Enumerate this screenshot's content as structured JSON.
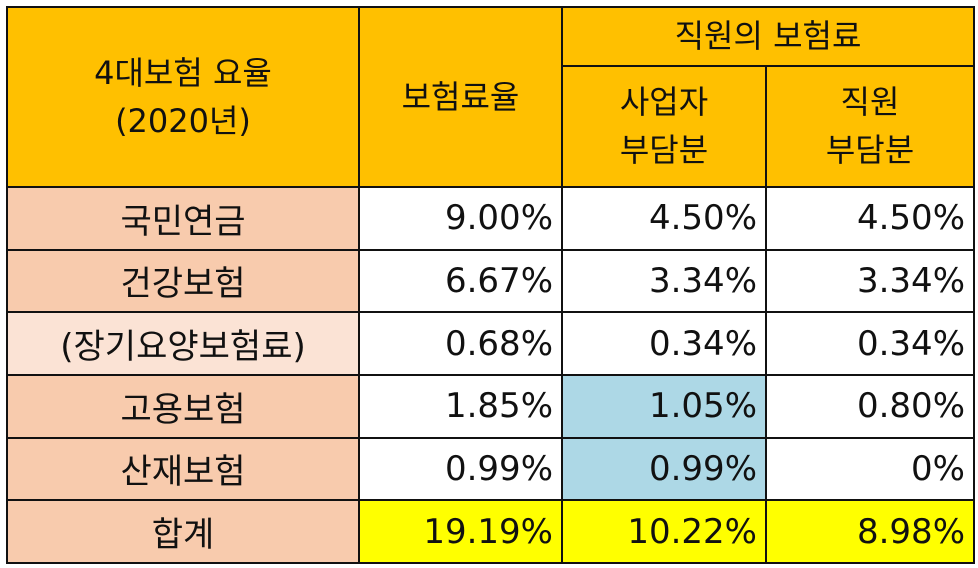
{
  "header": {
    "title_line1": "4대보험 요율",
    "title_line2": "(2020년)",
    "premium_rate": "보험료율",
    "employee_premium": "직원의 보험료",
    "employer_share_line1": "사업자",
    "employer_share_line2": "부담분",
    "employee_share_line1": "직원",
    "employee_share_line2": "부담분"
  },
  "rows": [
    {
      "label": "국민연금",
      "rate": "9.00%",
      "employer": "4.50%",
      "employee": "4.50%"
    },
    {
      "label": "건강보험",
      "rate": "6.67%",
      "employer": "3.34%",
      "employee": "3.34%"
    },
    {
      "label": "(장기요양보험료)",
      "rate": "0.68%",
      "employer": "0.34%",
      "employee": "0.34%"
    },
    {
      "label": "고용보험",
      "rate": "1.85%",
      "employer": "1.05%",
      "employee": "0.80%"
    },
    {
      "label": "산재보험",
      "rate": "0.99%",
      "employer": "0.99%",
      "employee": "0%"
    }
  ],
  "total": {
    "label": "합계",
    "rate": "19.19%",
    "employer": "10.22%",
    "employee": "8.98%"
  },
  "colors": {
    "header_bg": "#ffc000",
    "label_bg": "#f8cbad",
    "label_bg_light": "#fbe3d5",
    "highlight_blue": "#add8e6",
    "total_bg": "#ffff00"
  }
}
